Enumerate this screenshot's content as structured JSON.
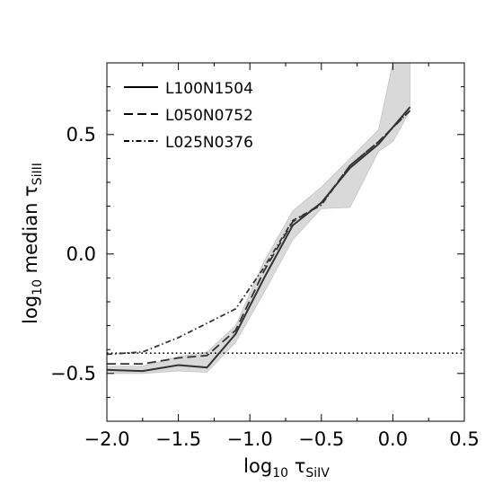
{
  "chart_data": {
    "type": "line",
    "xlabel": "log10 τSiIV",
    "ylabel": "log10 median τSiIII",
    "xlim": [
      -2.0,
      0.5
    ],
    "ylim": [
      -0.7,
      0.8
    ],
    "xticks": [
      -2.0,
      -1.5,
      -1.0,
      -0.5,
      0.0,
      0.5
    ],
    "xtick_labels": [
      "−2.0",
      "−1.5",
      "−1.0",
      "−0.5",
      "0.0",
      "0.5"
    ],
    "yticks": [
      -0.5,
      0.0,
      0.5
    ],
    "ytick_labels": [
      "−0.5",
      "0.0",
      "0.5"
    ],
    "grid": false,
    "legend_position": "top-left",
    "series": [
      {
        "name": "L100N1504",
        "style": "solid",
        "color": "#333333",
        "x": [
          -2.0,
          -1.75,
          -1.5,
          -1.3,
          -1.1,
          -0.9,
          -0.7,
          -0.5,
          -0.3,
          -0.1,
          0.12
        ],
        "y": [
          -0.485,
          -0.49,
          -0.465,
          -0.475,
          -0.335,
          -0.1,
          0.12,
          0.215,
          0.36,
          0.46,
          0.615
        ]
      },
      {
        "name": "L050N0752",
        "style": "dashed",
        "color": "#333333",
        "x": [
          -2.0,
          -1.75,
          -1.5,
          -1.3,
          -1.1,
          -0.9,
          -0.7,
          -0.5,
          -0.3,
          -0.1,
          0.12
        ],
        "y": [
          -0.46,
          -0.46,
          -0.435,
          -0.425,
          -0.32,
          -0.07,
          0.135,
          0.21,
          0.37,
          0.47,
          0.6
        ]
      },
      {
        "name": "L025N0376",
        "style": "dashdot",
        "color": "#333333",
        "x": [
          -2.0,
          -1.75,
          -1.5,
          -1.3,
          -1.1,
          -0.9,
          -0.7,
          -0.5,
          -0.3,
          -0.1,
          0.12
        ],
        "y": [
          -0.42,
          -0.41,
          -0.35,
          -0.29,
          -0.23,
          -0.055,
          0.14,
          0.205,
          0.37,
          0.47,
          0.6
        ]
      }
    ],
    "band": {
      "color": "#d9d9d9",
      "x": [
        -2.0,
        -1.75,
        -1.5,
        -1.3,
        -1.1,
        -0.9,
        -0.7,
        -0.5,
        -0.3,
        -0.1,
        0.0,
        0.12
      ],
      "upper": [
        -0.47,
        -0.47,
        -0.43,
        -0.41,
        -0.3,
        -0.03,
        0.18,
        0.28,
        0.4,
        0.52,
        0.8,
        0.8
      ],
      "lower": [
        -0.5,
        -0.5,
        -0.49,
        -0.495,
        -0.37,
        -0.16,
        0.06,
        0.19,
        0.195,
        0.43,
        0.47,
        0.6
      ]
    },
    "reference_line": {
      "style": "dotted",
      "y": -0.415
    }
  }
}
